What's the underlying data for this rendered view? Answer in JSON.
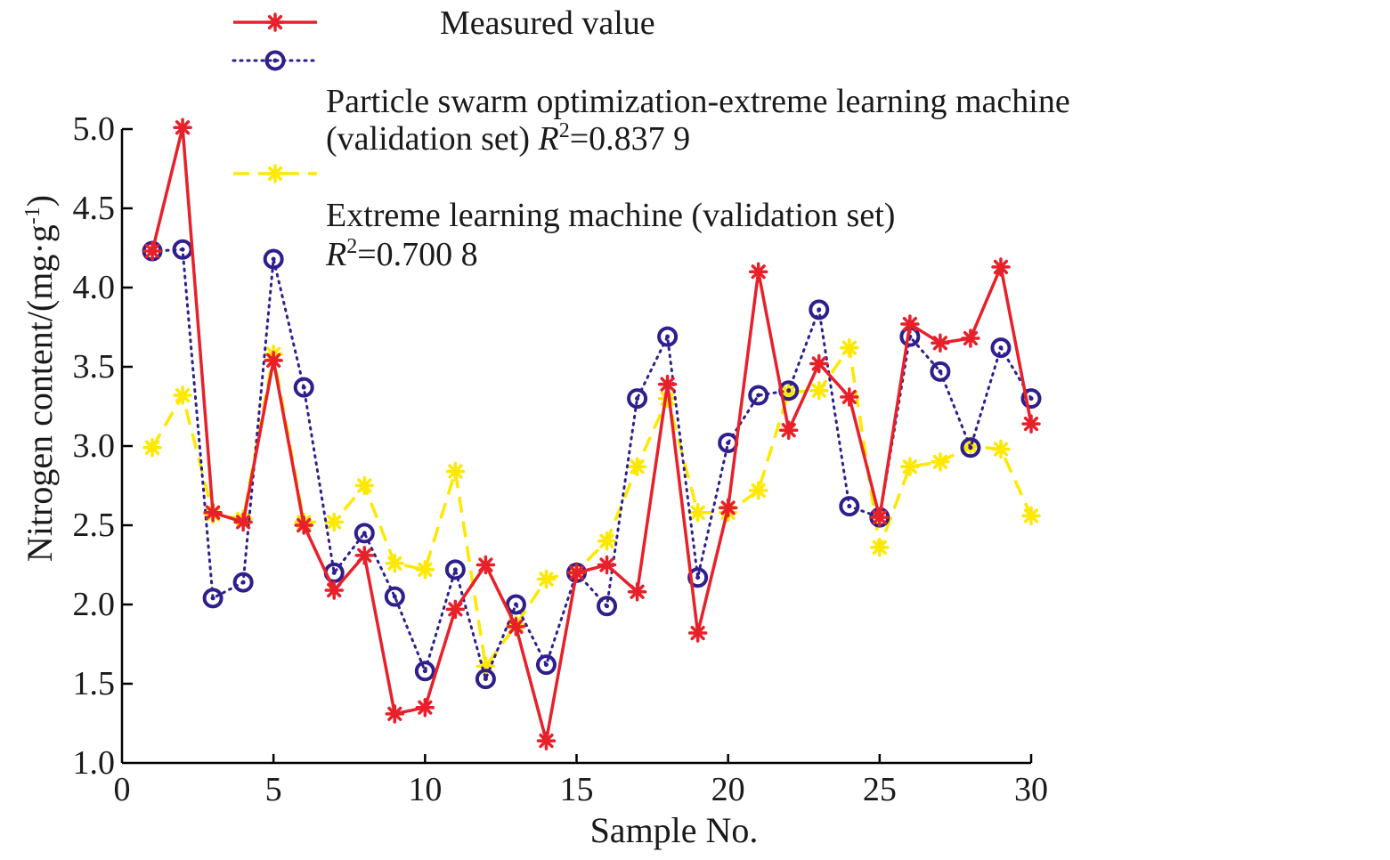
{
  "chart_data": {
    "type": "line",
    "xlabel": "Sample No.",
    "ylabel": "Nitrogen content/(mg·g",
    "ylabel_sup": "-1",
    "ylabel_close": ")",
    "xlim": [
      0,
      30
    ],
    "ylim": [
      1.0,
      5.0
    ],
    "x_ticks": [
      0,
      5,
      10,
      15,
      20,
      25,
      30
    ],
    "y_ticks": [
      1.0,
      1.5,
      2.0,
      2.5,
      3.0,
      3.5,
      4.0,
      4.5,
      5.0
    ],
    "y_tick_labels": [
      "1.0",
      "1.5",
      "2.0",
      "2.5",
      "3.0",
      "3.5",
      "4.0",
      "4.5",
      "5.0"
    ],
    "grid": false,
    "legend_position": "top",
    "x": [
      1,
      2,
      3,
      4,
      5,
      6,
      7,
      8,
      9,
      10,
      11,
      12,
      13,
      14,
      15,
      16,
      17,
      18,
      19,
      20,
      21,
      22,
      23,
      24,
      25,
      26,
      27,
      28,
      29,
      30
    ],
    "series": [
      {
        "name": "Measured value",
        "color": "#e8202a",
        "line_style": "solid",
        "marker": "asterisk",
        "values": [
          4.23,
          5.01,
          2.58,
          2.52,
          3.54,
          2.5,
          2.09,
          2.31,
          1.31,
          1.35,
          1.97,
          2.25,
          1.86,
          1.14,
          2.2,
          2.25,
          2.08,
          3.39,
          1.82,
          2.61,
          4.1,
          3.1,
          3.52,
          3.31,
          2.55,
          3.77,
          3.65,
          3.68,
          4.13,
          3.14
        ]
      },
      {
        "name": "Particle swarm optimization-extreme learning machine",
        "name_line2_prefix": "(validation set) ",
        "r2_label": "R",
        "r2_value": "=0.837 9",
        "color": "#2e1f8c",
        "line_style": "dotted",
        "marker": "circle",
        "values": [
          4.23,
          4.24,
          2.04,
          2.14,
          4.18,
          3.37,
          2.2,
          2.45,
          2.05,
          1.58,
          2.22,
          1.53,
          2.0,
          1.62,
          2.2,
          1.99,
          3.3,
          3.69,
          2.17,
          3.02,
          3.32,
          3.35,
          3.86,
          2.62,
          2.55,
          3.69,
          3.47,
          2.99,
          3.62,
          3.3
        ]
      },
      {
        "name": "Extreme learning machine (validation set)",
        "r2_label": "R",
        "r2_value": "=0.700 8",
        "color": "#ffe800",
        "line_style": "dashed",
        "marker": "asterisk",
        "values": [
          2.99,
          3.32,
          2.57,
          2.54,
          3.58,
          2.52,
          2.52,
          2.75,
          2.26,
          2.22,
          2.84,
          1.61,
          1.87,
          2.16,
          2.21,
          2.4,
          2.87,
          3.3,
          2.58,
          2.58,
          2.72,
          3.34,
          3.35,
          3.62,
          2.36,
          2.87,
          2.9,
          3.0,
          2.98,
          2.56
        ]
      }
    ]
  }
}
